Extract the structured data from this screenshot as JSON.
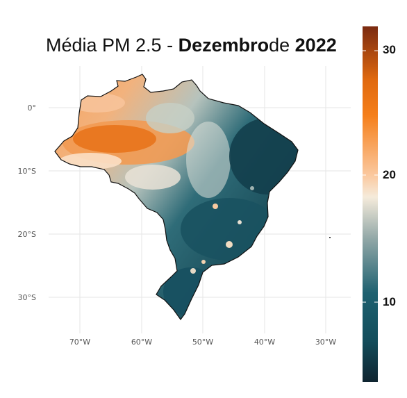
{
  "title": {
    "prefix": "Média PM 2.5 - ",
    "month": "Dezembro",
    "connector": "de ",
    "year": "2022"
  },
  "axes": {
    "x_ticks": [
      "70°W",
      "60°W",
      "50°W",
      "40°W",
      "30°W"
    ],
    "y_ticks": [
      "0°",
      "10°S",
      "20°S",
      "30°S"
    ],
    "x_range_deg": [
      -75,
      -27
    ],
    "y_range_deg": [
      -36,
      7
    ]
  },
  "legend": {
    "placement": "right",
    "min": 3,
    "max": 33,
    "ticks": [
      "10",
      "20",
      "30"
    ],
    "colors": [
      "#0f2430",
      "#134e5c",
      "#1e6170",
      "#8fa6a6",
      "#f5ebdb",
      "#fbc9a0",
      "#f57f1a",
      "#e0690f",
      "#7a2a10"
    ]
  },
  "map": {
    "region": "Brasil",
    "palette": {
      "high": "#e36e14",
      "mid_high": "#f5a25a",
      "mid": "#fbd9bd",
      "neutral": "#c7cfc6",
      "low": "#2d6a77",
      "lowest": "#10404d"
    }
  }
}
